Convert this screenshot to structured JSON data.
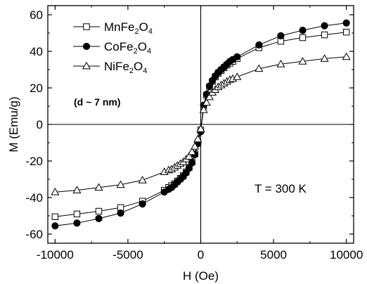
{
  "chart_data": {
    "type": "scatter",
    "xlabel": "H (Oe)",
    "ylabel": "M (Emu/g)",
    "xlim": [
      -10500,
      10500
    ],
    "ylim": [
      -65,
      65
    ],
    "xticks": [
      -10000,
      -5000,
      0,
      5000,
      10000
    ],
    "yticks": [
      -60,
      -40,
      -20,
      0,
      20,
      40,
      60
    ],
    "xtick_labels": [
      "-10000",
      "-5000",
      "0",
      "5000",
      "10000"
    ],
    "ytick_labels": [
      "-60",
      "-40",
      "-20",
      "0",
      "20",
      "40",
      "60"
    ],
    "grid": false,
    "zero_lines": true,
    "legend_position": "top-left",
    "series": [
      {
        "name": "MnFe2O4",
        "label_parts": [
          "MnFe",
          "2",
          "O",
          "4"
        ],
        "marker": "square-open",
        "x": [
          -10000,
          -8500,
          -7000,
          -5500,
          -4000,
          -2500,
          -2200,
          -2000,
          -1800,
          -1600,
          -1400,
          -1200,
          -1000,
          -800,
          -600,
          -400,
          -200,
          0,
          200,
          400,
          600,
          800,
          1000,
          1200,
          1400,
          1600,
          1800,
          2000,
          2200,
          2500,
          4000,
          5500,
          7000,
          8500,
          10000
        ],
        "y": [
          -50.5,
          -49,
          -47.5,
          -45.5,
          -42,
          -36,
          -34.5,
          -33.5,
          -32.5,
          -31,
          -29.5,
          -28,
          -26,
          -23.5,
          -20.5,
          -16,
          -10,
          -3,
          10,
          16,
          20.5,
          23.5,
          26,
          28,
          29.5,
          31,
          32.5,
          33.5,
          34.5,
          36,
          42,
          45.5,
          47.5,
          49,
          50.5
        ]
      },
      {
        "name": "CoFe2O4",
        "label_parts": [
          "CoFe",
          "2",
          "O",
          "4"
        ],
        "marker": "circle-filled",
        "x": [
          -10000,
          -8500,
          -7000,
          -5500,
          -4000,
          -2500,
          -2200,
          -2000,
          -1800,
          -1600,
          -1400,
          -1200,
          -1000,
          -800,
          -600,
          -400,
          -200,
          0,
          200,
          400,
          600,
          800,
          1000,
          1200,
          1400,
          1600,
          1800,
          2000,
          2200,
          2500,
          4000,
          5500,
          7000,
          8500,
          10000
        ],
        "y": [
          -55.5,
          -54,
          -51.5,
          -48.5,
          -43.5,
          -37,
          -35.5,
          -34.5,
          -33,
          -31.5,
          -30,
          -28.5,
          -26.5,
          -24,
          -21,
          -16.5,
          -10.5,
          -4,
          10.5,
          16.5,
          21,
          24,
          26.5,
          28.5,
          30,
          31.5,
          33,
          34.5,
          35.5,
          37,
          43.5,
          48.5,
          51.5,
          54,
          55.5
        ]
      },
      {
        "name": "NiFe2O4",
        "label_parts": [
          "NiFe",
          "2",
          "O",
          "4"
        ],
        "marker": "triangle-open",
        "x": [
          -10000,
          -8500,
          -7000,
          -5500,
          -4000,
          -2500,
          -2200,
          -2000,
          -1800,
          -1600,
          -1400,
          -1200,
          -1000,
          -800,
          -600,
          -400,
          -200,
          0,
          200,
          400,
          600,
          800,
          1000,
          1200,
          1400,
          1600,
          1800,
          2000,
          2200,
          2500,
          4000,
          5500,
          7000,
          8500,
          10000
        ],
        "y": [
          -37,
          -36,
          -34.5,
          -33,
          -30.5,
          -26,
          -25,
          -24.5,
          -23.5,
          -22.5,
          -21.5,
          -20.5,
          -19,
          -17.5,
          -15,
          -12,
          -8,
          -2.5,
          8,
          12,
          15,
          17.5,
          19,
          20.5,
          21.5,
          22.5,
          23.5,
          24.5,
          25,
          26,
          30.5,
          33,
          34.5,
          36,
          37
        ]
      }
    ],
    "annotations": [
      {
        "text": "(d ~ 7 nm)"
      },
      {
        "text": "T = 300 K"
      }
    ]
  }
}
